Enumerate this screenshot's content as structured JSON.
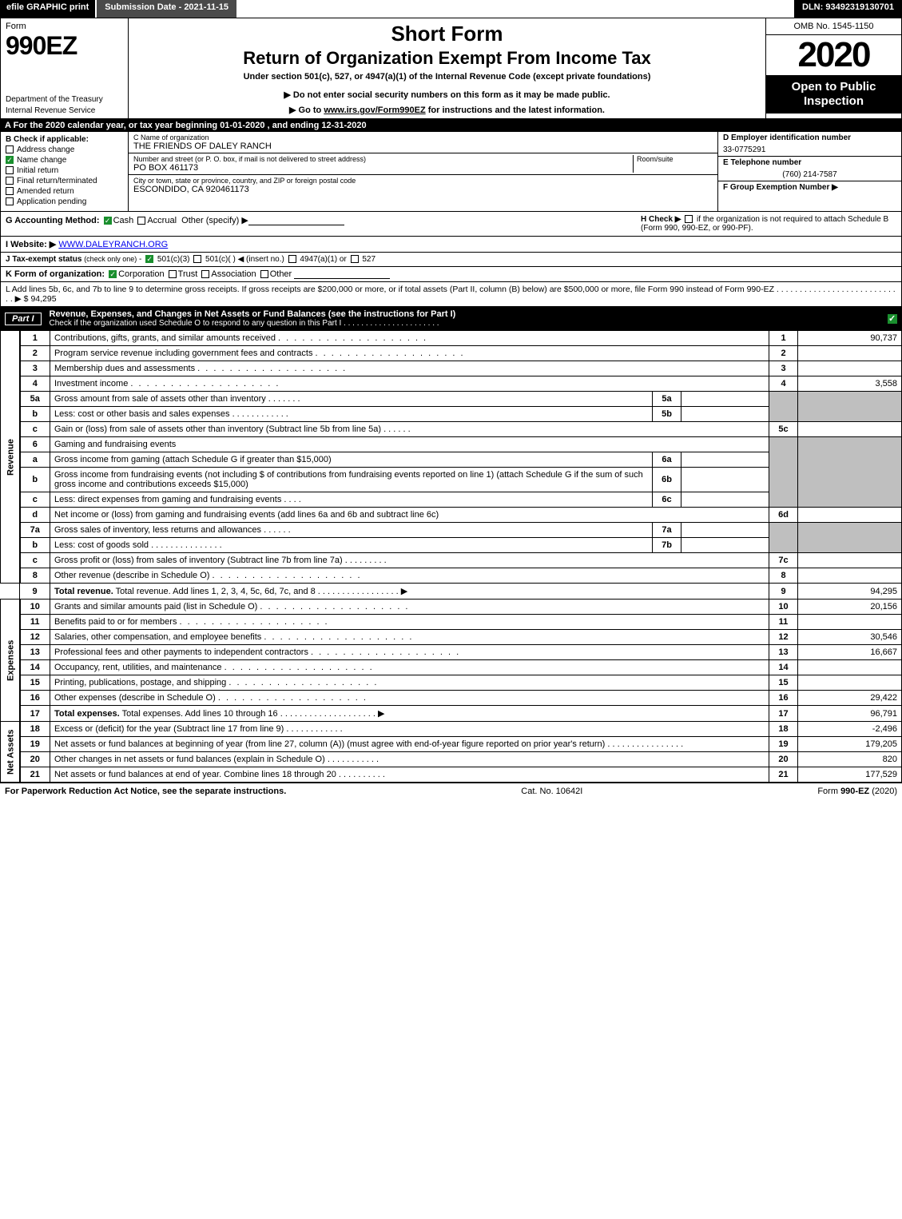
{
  "topbar": {
    "efile": "efile GRAPHIC print",
    "subdate": "Submission Date - 2021-11-15",
    "dln": "DLN: 93492319130701"
  },
  "header": {
    "formword": "Form",
    "formnum": "990EZ",
    "dept": "Department of the Treasury",
    "irs": "Internal Revenue Service",
    "short": "Short Form",
    "return": "Return of Organization Exempt From Income Tax",
    "under": "Under section 501(c), 527, or 4947(a)(1) of the Internal Revenue Code (except private foundations)",
    "warn": "▶ Do not enter social security numbers on this form as it may be made public.",
    "goto_pre": "▶ Go to ",
    "goto_link": "www.irs.gov/Form990EZ",
    "goto_post": " for instructions and the latest information.",
    "omb": "OMB No. 1545-1150",
    "year": "2020",
    "open": "Open to Public Inspection"
  },
  "bandA": "A For the 2020 calendar year, or tax year beginning 01-01-2020 , and ending 12-31-2020",
  "colB": {
    "title": "B Check if applicable:",
    "items": [
      {
        "label": "Address change",
        "checked": false
      },
      {
        "label": "Name change",
        "checked": true
      },
      {
        "label": "Initial return",
        "checked": false
      },
      {
        "label": "Final return/terminated",
        "checked": false
      },
      {
        "label": "Amended return",
        "checked": false
      },
      {
        "label": "Application pending",
        "checked": false
      }
    ]
  },
  "colC": {
    "name_label": "C Name of organization",
    "name": "THE FRIENDS OF DALEY RANCH",
    "addr_label": "Number and street (or P. O. box, if mail is not delivered to street address)",
    "addr": "PO BOX 461173",
    "room_label": "Room/suite",
    "city_label": "City or town, state or province, country, and ZIP or foreign postal code",
    "city": "ESCONDIDO, CA  920461173"
  },
  "colD": {
    "ein_label": "D Employer identification number",
    "ein": "33-0775291",
    "tel_label": "E Telephone number",
    "tel": "(760) 214-7587",
    "grp_label": "F Group Exemption Number  ▶",
    "grp": ""
  },
  "rowG": {
    "label": "G Accounting Method:",
    "cash": "Cash",
    "accrual": "Accrual",
    "other": "Other (specify) ▶",
    "h_label": "H  Check ▶",
    "h_text": "if the organization is not required to attach Schedule B (Form 990, 990-EZ, or 990-PF)."
  },
  "rowI": {
    "label": "I Website: ▶",
    "url": "WWW.DALEYRANCH.ORG"
  },
  "rowJ": "J Tax-exempt status (check only one) -  ☑ 501(c)(3)  ◯ 501(c)(  ) ◀ (insert no.)  ◯ 4947(a)(1) or  ◯ 527",
  "rowK": {
    "label": "K Form of organization:",
    "corp": "Corporation",
    "trust": "Trust",
    "assoc": "Association",
    "other": "Other"
  },
  "rowL": {
    "text": "L Add lines 5b, 6c, and 7b to line 9 to determine gross receipts. If gross receipts are $200,000 or more, or if total assets (Part II, column (B) below) are $500,000 or more, file Form 990 instead of Form 990-EZ  .  .  .  .  .  .  .  .  .  .  .  .  .  .  .  .  .  .  .  .  .  .  .  .  .  .  .  .  ▶ $",
    "amount": "94,295"
  },
  "part1": {
    "label": "Part I",
    "title": "Revenue, Expenses, and Changes in Net Assets or Fund Balances (see the instructions for Part I)",
    "sub": "Check if the organization used Schedule O to respond to any question in this Part I  .  .  .  .  .  .  .  .  .  .  .  .  .  .  .  .  .  .  .  .  .  ."
  },
  "sides": {
    "revenue": "Revenue",
    "expenses": "Expenses",
    "netassets": "Net Assets"
  },
  "lines": {
    "l1": {
      "n": "1",
      "d": "Contributions, gifts, grants, and similar amounts received",
      "box": "1",
      "v": "90,737"
    },
    "l2": {
      "n": "2",
      "d": "Program service revenue including government fees and contracts",
      "box": "2",
      "v": ""
    },
    "l3": {
      "n": "3",
      "d": "Membership dues and assessments",
      "box": "3",
      "v": ""
    },
    "l4": {
      "n": "4",
      "d": "Investment income",
      "box": "4",
      "v": "3,558"
    },
    "l5a": {
      "n": "5a",
      "d": "Gross amount from sale of assets other than inventory",
      "sub": "5a",
      "sv": ""
    },
    "l5b": {
      "n": "b",
      "d": "Less: cost or other basis and sales expenses",
      "sub": "5b",
      "sv": ""
    },
    "l5c": {
      "n": "c",
      "d": "Gain or (loss) from sale of assets other than inventory (Subtract line 5b from line 5a)",
      "box": "5c",
      "v": ""
    },
    "l6": {
      "n": "6",
      "d": "Gaming and fundraising events"
    },
    "l6a": {
      "n": "a",
      "d": "Gross income from gaming (attach Schedule G if greater than $15,000)",
      "sub": "6a",
      "sv": ""
    },
    "l6b": {
      "n": "b",
      "d": "Gross income from fundraising events (not including $                      of contributions from fundraising events reported on line 1) (attach Schedule G if the sum of such gross income and contributions exceeds $15,000)",
      "sub": "6b",
      "sv": ""
    },
    "l6c": {
      "n": "c",
      "d": "Less: direct expenses from gaming and fundraising events",
      "sub": "6c",
      "sv": ""
    },
    "l6d": {
      "n": "d",
      "d": "Net income or (loss) from gaming and fundraising events (add lines 6a and 6b and subtract line 6c)",
      "box": "6d",
      "v": ""
    },
    "l7a": {
      "n": "7a",
      "d": "Gross sales of inventory, less returns and allowances",
      "sub": "7a",
      "sv": ""
    },
    "l7b": {
      "n": "b",
      "d": "Less: cost of goods sold",
      "sub": "7b",
      "sv": ""
    },
    "l7c": {
      "n": "c",
      "d": "Gross profit or (loss) from sales of inventory (Subtract line 7b from line 7a)",
      "box": "7c",
      "v": ""
    },
    "l8": {
      "n": "8",
      "d": "Other revenue (describe in Schedule O)",
      "box": "8",
      "v": ""
    },
    "l9": {
      "n": "9",
      "d": "Total revenue. Add lines 1, 2, 3, 4, 5c, 6d, 7c, and 8  .  .  .  .  .  .  .  .  .  .  .  .  .  .  .  .  .  ▶",
      "box": "9",
      "v": "94,295"
    },
    "l10": {
      "n": "10",
      "d": "Grants and similar amounts paid (list in Schedule O)",
      "box": "10",
      "v": "20,156"
    },
    "l11": {
      "n": "11",
      "d": "Benefits paid to or for members",
      "box": "11",
      "v": ""
    },
    "l12": {
      "n": "12",
      "d": "Salaries, other compensation, and employee benefits",
      "box": "12",
      "v": "30,546"
    },
    "l13": {
      "n": "13",
      "d": "Professional fees and other payments to independent contractors",
      "box": "13",
      "v": "16,667"
    },
    "l14": {
      "n": "14",
      "d": "Occupancy, rent, utilities, and maintenance",
      "box": "14",
      "v": ""
    },
    "l15": {
      "n": "15",
      "d": "Printing, publications, postage, and shipping",
      "box": "15",
      "v": ""
    },
    "l16": {
      "n": "16",
      "d": "Other expenses (describe in Schedule O)",
      "box": "16",
      "v": "29,422"
    },
    "l17": {
      "n": "17",
      "d": "Total expenses. Add lines 10 through 16  .  .  .  .  .  .  .  .  .  .  .  .  .  .  .  .  .  .  .  .  ▶",
      "box": "17",
      "v": "96,791"
    },
    "l18": {
      "n": "18",
      "d": "Excess or (deficit) for the year (Subtract line 17 from line 9)",
      "box": "18",
      "v": "-2,496"
    },
    "l19": {
      "n": "19",
      "d": "Net assets or fund balances at beginning of year (from line 27, column (A)) (must agree with end-of-year figure reported on prior year's return)",
      "box": "19",
      "v": "179,205"
    },
    "l20": {
      "n": "20",
      "d": "Other changes in net assets or fund balances (explain in Schedule O)",
      "box": "20",
      "v": "820"
    },
    "l21": {
      "n": "21",
      "d": "Net assets or fund balances at end of year. Combine lines 18 through 20",
      "box": "21",
      "v": "177,529"
    }
  },
  "footer": {
    "left": "For Paperwork Reduction Act Notice, see the separate instructions.",
    "mid": "Cat. No. 10642I",
    "right": "Form 990-EZ (2020)"
  }
}
